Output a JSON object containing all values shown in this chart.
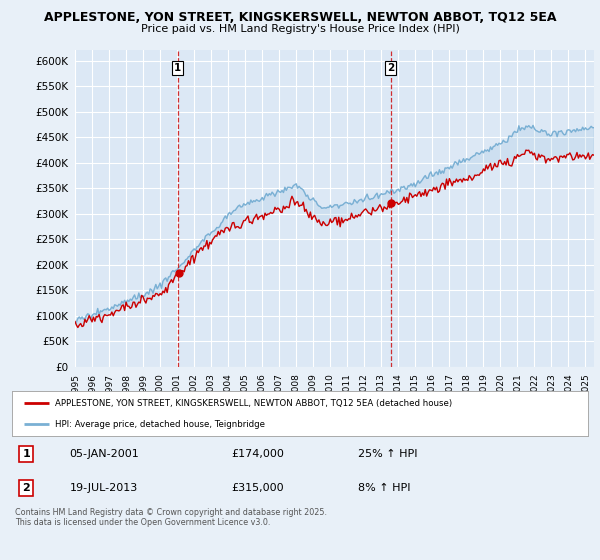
{
  "title_line1": "APPLESTONE, YON STREET, KINGSKERSWELL, NEWTON ABBOT, TQ12 5EA",
  "title_line2": "Price paid vs. HM Land Registry's House Price Index (HPI)",
  "bg_color": "#e8f0f8",
  "plot_bg": "#dce8f5",
  "grid_color": "#ffffff",
  "red_color": "#cc0000",
  "blue_color": "#7ab0d4",
  "legend_label_red": "APPLESTONE, YON STREET, KINGSKERSWELL, NEWTON ABBOT, TQ12 5EA (detached house)",
  "legend_label_blue": "HPI: Average price, detached house, Teignbridge",
  "purchase1_year": 2001.04,
  "purchase1_price": 174000,
  "purchase2_year": 2013.55,
  "purchase2_price": 315000,
  "table_rows": [
    {
      "num": "1",
      "date": "05-JAN-2001",
      "price": "£174,000",
      "change": "25% ↑ HPI"
    },
    {
      "num": "2",
      "date": "19-JUL-2013",
      "price": "£315,000",
      "change": "8% ↑ HPI"
    }
  ],
  "footer": "Contains HM Land Registry data © Crown copyright and database right 2025.\nThis data is licensed under the Open Government Licence v3.0.",
  "ylim": [
    0,
    620000
  ],
  "yticks": [
    0,
    50000,
    100000,
    150000,
    200000,
    250000,
    300000,
    350000,
    400000,
    450000,
    500000,
    550000,
    600000
  ],
  "xlim_start": 1995,
  "xlim_end": 2025.5
}
